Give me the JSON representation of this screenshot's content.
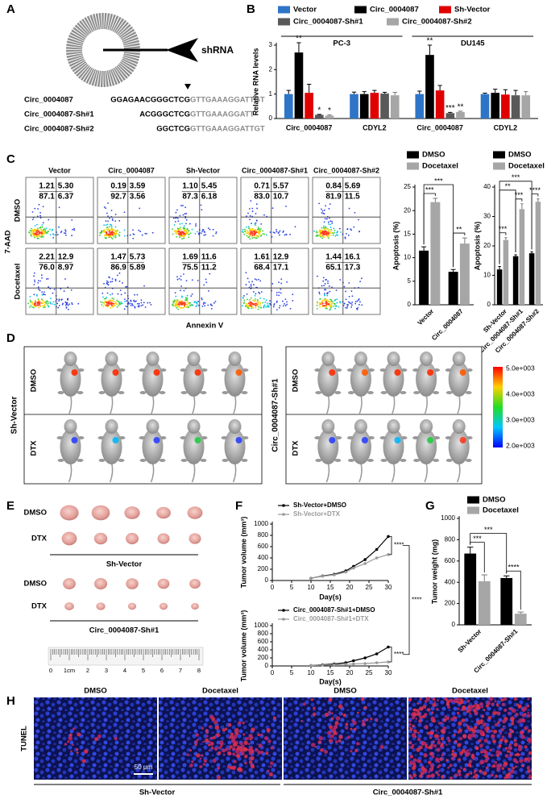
{
  "panel_labels": [
    "A",
    "B",
    "C",
    "D",
    "E",
    "F",
    "G",
    "H"
  ],
  "panel_a": {
    "target_label": "shRNA",
    "sequences": [
      {
        "name": "Circ_0004087",
        "prefix": "GGAGAACGGGCTCG",
        "suffix": "GTTGAAAGGATTGT"
      },
      {
        "name": "Circ_0004087-Sh#1",
        "prefix": "ACGGGCTCG",
        "suffix": "GTTGAAAGGATT"
      },
      {
        "name": "Circ_0004087-Sh#2",
        "prefix": "GGCTCG",
        "suffix": "GTTGAAAGGATTGT"
      }
    ]
  },
  "panel_c": {
    "columns": [
      "Vector",
      "Circ_0004087",
      "Sh-Vector",
      "Circ_0004087-Sh#1",
      "Circ_0004087-Sh#2"
    ],
    "rows": [
      "DMSO",
      "Docetaxel"
    ],
    "ylabel": "7-AAD",
    "xlabel": "Annexin V",
    "quadrants": [
      [
        [
          "1.21",
          "5.30",
          "87.1",
          "6.37"
        ],
        [
          "0.19",
          "3.59",
          "92.7",
          "3.56"
        ],
        [
          "1.10",
          "5.45",
          "87.3",
          "6.18"
        ],
        [
          "0.71",
          "5.57",
          "83.0",
          "10.7"
        ],
        [
          "0.84",
          "5.69",
          "81.9",
          "11.5"
        ]
      ],
      [
        [
          "2.21",
          "12.9",
          "76.0",
          "8.97"
        ],
        [
          "1.47",
          "5.73",
          "86.9",
          "5.89"
        ],
        [
          "1.69",
          "11.6",
          "75.5",
          "11.2"
        ],
        [
          "1.61",
          "12.9",
          "68.4",
          "17.1"
        ],
        [
          "1.44",
          "16.1",
          "65.1",
          "17.3"
        ]
      ]
    ]
  },
  "panel_d": {
    "groups": [
      "Sh-Vector",
      "Circ_0004087-Sh#1"
    ],
    "rows": [
      "DMSO",
      "DTX"
    ],
    "colorbar": [
      "5.0e+003",
      "4.0e+003",
      "3.0e+003",
      "2.0e+003"
    ]
  },
  "panel_e": {
    "rows": [
      "DMSO",
      "DTX"
    ],
    "groups": [
      "Sh-Vector",
      "Circ_0004087-Sh#1"
    ],
    "ruler": [
      "0",
      "1cm",
      "2",
      "3",
      "4",
      "5",
      "6",
      "7",
      "8"
    ]
  },
  "panel_f": {
    "comparison": "****"
  },
  "panel_h": {
    "columns": [
      "DMSO",
      "Docetaxel",
      "DMSO",
      "Docetaxel"
    ],
    "row": "TUNEL",
    "scale_bar": "50 μm",
    "groups": [
      "Sh-Vector",
      "Circ_0004087-Sh#1"
    ]
  },
  "chart_data": [
    {
      "type": "bar",
      "ylabel": "Relative RNA levels",
      "categories": [
        "Circ_0004087",
        "CDYL2",
        "Circ_0004087",
        "CDYL2"
      ],
      "groups": [
        "PC-3",
        "DU145"
      ],
      "ylim": [
        0,
        3
      ],
      "yticks": [
        0,
        1,
        2,
        3
      ],
      "series": [
        {
          "name": "Vector",
          "color": "#2e75c7",
          "values": [
            1.0,
            1.0,
            1.0,
            1.0
          ],
          "errors": [
            0.15,
            0.08,
            0.12,
            0.04
          ]
        },
        {
          "name": "Circ_0004087",
          "color": "#000000",
          "values": [
            2.7,
            1.0,
            2.6,
            1.05
          ],
          "errors": [
            0.4,
            0.1,
            0.4,
            0.15
          ],
          "annotations": [
            "**",
            null,
            "**",
            null
          ]
        },
        {
          "name": "Sh-Vector",
          "color": "#e00000",
          "values": [
            1.05,
            1.05,
            1.15,
            0.98
          ],
          "errors": [
            0.35,
            0.1,
            0.2,
            0.2
          ]
        },
        {
          "name": "Circ_0004087-Sh#1",
          "color": "#595959",
          "values": [
            0.15,
            1.02,
            0.22,
            0.95
          ],
          "errors": [
            0.02,
            0.05,
            0.03,
            0.2
          ],
          "annotations": [
            "*",
            null,
            "***",
            null
          ]
        },
        {
          "name": "Circ_0004087-Sh#2",
          "color": "#a6a6a6",
          "values": [
            0.12,
            0.95,
            0.27,
            0.95
          ],
          "errors": [
            0.03,
            0.12,
            0.03,
            0.15
          ],
          "annotations": [
            "*",
            null,
            "**",
            null
          ]
        }
      ]
    },
    {
      "type": "bar",
      "ylabel": "Apoptosis (%)",
      "categories": [
        "Vector",
        "Circ_0004087"
      ],
      "ylim": [
        0,
        25
      ],
      "yticks": [
        0,
        5,
        10,
        15,
        20,
        25
      ],
      "series": [
        {
          "name": "DMSO",
          "color": "#000000",
          "values": [
            11.5,
            7.0
          ],
          "errors": [
            0.8,
            0.5
          ]
        },
        {
          "name": "Docetaxel",
          "color": "#a6a6a6",
          "values": [
            21.8,
            13.0
          ],
          "errors": [
            0.8,
            1.2
          ]
        }
      ],
      "comparisons": [
        {
          "label": "***",
          "pair": [
            [
              0,
              0
            ],
            [
              1,
              0
            ]
          ]
        },
        {
          "label": "**",
          "pair": [
            [
              0,
              1
            ],
            [
              1,
              1
            ]
          ]
        },
        {
          "label": "***",
          "pair": [
            [
              0,
              0
            ],
            [
              0,
              1
            ]
          ]
        }
      ]
    },
    {
      "type": "bar",
      "ylabel": "Apoptosis (%)",
      "categories": [
        "Sh-Vector",
        "Circ_0004087-Sh#1",
        "Circ_0004087-Sh#2"
      ],
      "ylim": [
        0,
        40
      ],
      "yticks": [
        0,
        10,
        20,
        30,
        40
      ],
      "series": [
        {
          "name": "DMSO",
          "color": "#000000",
          "values": [
            12.0,
            16.5,
            17.5
          ],
          "errors": [
            1.0,
            0.5,
            0.5
          ]
        },
        {
          "name": "Docetaxel",
          "color": "#a6a6a6",
          "values": [
            22.0,
            32.5,
            35.0
          ],
          "errors": [
            0.8,
            1.8,
            1.0
          ]
        }
      ],
      "comparisons": [
        {
          "label": "***",
          "pair": [
            [
              0,
              0
            ],
            [
              1,
              0
            ]
          ]
        },
        {
          "label": "***",
          "pair": [
            [
              0,
              1
            ],
            [
              1,
              1
            ]
          ]
        },
        {
          "label": "****",
          "pair": [
            [
              0,
              2
            ],
            [
              1,
              2
            ]
          ]
        },
        {
          "label": "**",
          "pair": [
            [
              0,
              0
            ],
            [
              0,
              1
            ]
          ]
        },
        {
          "label": "***",
          "pair": [
            [
              0,
              0
            ],
            [
              0,
              2
            ]
          ]
        }
      ]
    },
    {
      "type": "line",
      "ylabel": "Tumor volume (mm³)",
      "xlabel": "Day(s)",
      "x": [
        10,
        13,
        16,
        19,
        21,
        24,
        27,
        30
      ],
      "xlim": [
        0,
        30
      ],
      "xticks": [
        0,
        5,
        10,
        15,
        20,
        25,
        30
      ],
      "ylim": [
        0,
        1000
      ],
      "yticks": [
        0,
        200,
        400,
        600,
        800,
        1000
      ],
      "series": [
        {
          "name": "Sh-Vector+DMSO",
          "color": "#000000",
          "values": [
            40,
            80,
            110,
            170,
            250,
            370,
            550,
            780
          ]
        },
        {
          "name": "Sh-Vector+DTX",
          "color": "#999999",
          "values": [
            40,
            75,
            100,
            150,
            220,
            300,
            400,
            460
          ]
        }
      ],
      "annotation": "****"
    },
    {
      "type": "line",
      "ylabel": "Tumor volume (mm³)",
      "xlabel": "Day(s)",
      "x": [
        10,
        13,
        16,
        19,
        21,
        24,
        27,
        30
      ],
      "xlim": [
        0,
        30
      ],
      "xticks": [
        0,
        5,
        10,
        15,
        20,
        25,
        30
      ],
      "ylim": [
        0,
        1000
      ],
      "yticks": [
        0,
        200,
        400,
        600,
        800,
        1000
      ],
      "series": [
        {
          "name": "Circ_0004087-Sh#1+DMSO",
          "color": "#000000",
          "values": [
            10,
            30,
            50,
            80,
            130,
            200,
            300,
            470
          ]
        },
        {
          "name": "Circ_0004087-Sh#1+DTX",
          "color": "#999999",
          "values": [
            10,
            20,
            30,
            40,
            50,
            60,
            80,
            100
          ]
        }
      ],
      "annotation": "****"
    },
    {
      "type": "bar",
      "ylabel": "Tumor weight (mg)",
      "categories": [
        "Sh-Vector",
        "Circ_0004087-Sh#1"
      ],
      "ylim": [
        0,
        1000
      ],
      "yticks": [
        0,
        200,
        400,
        600,
        800,
        1000
      ],
      "series": [
        {
          "name": "DMSO",
          "color": "#000000",
          "values": [
            670,
            440
          ],
          "errors": [
            60,
            20
          ]
        },
        {
          "name": "Docetaxel",
          "color": "#a6a6a6",
          "values": [
            410,
            105
          ],
          "errors": [
            60,
            15
          ]
        }
      ],
      "comparisons": [
        {
          "label": "***",
          "pair": [
            [
              0,
              0
            ],
            [
              1,
              0
            ]
          ]
        },
        {
          "label": "****",
          "pair": [
            [
              0,
              1
            ],
            [
              1,
              1
            ]
          ]
        },
        {
          "label": "***",
          "pair": [
            [
              0,
              0
            ],
            [
              0,
              1
            ]
          ]
        }
      ]
    }
  ]
}
